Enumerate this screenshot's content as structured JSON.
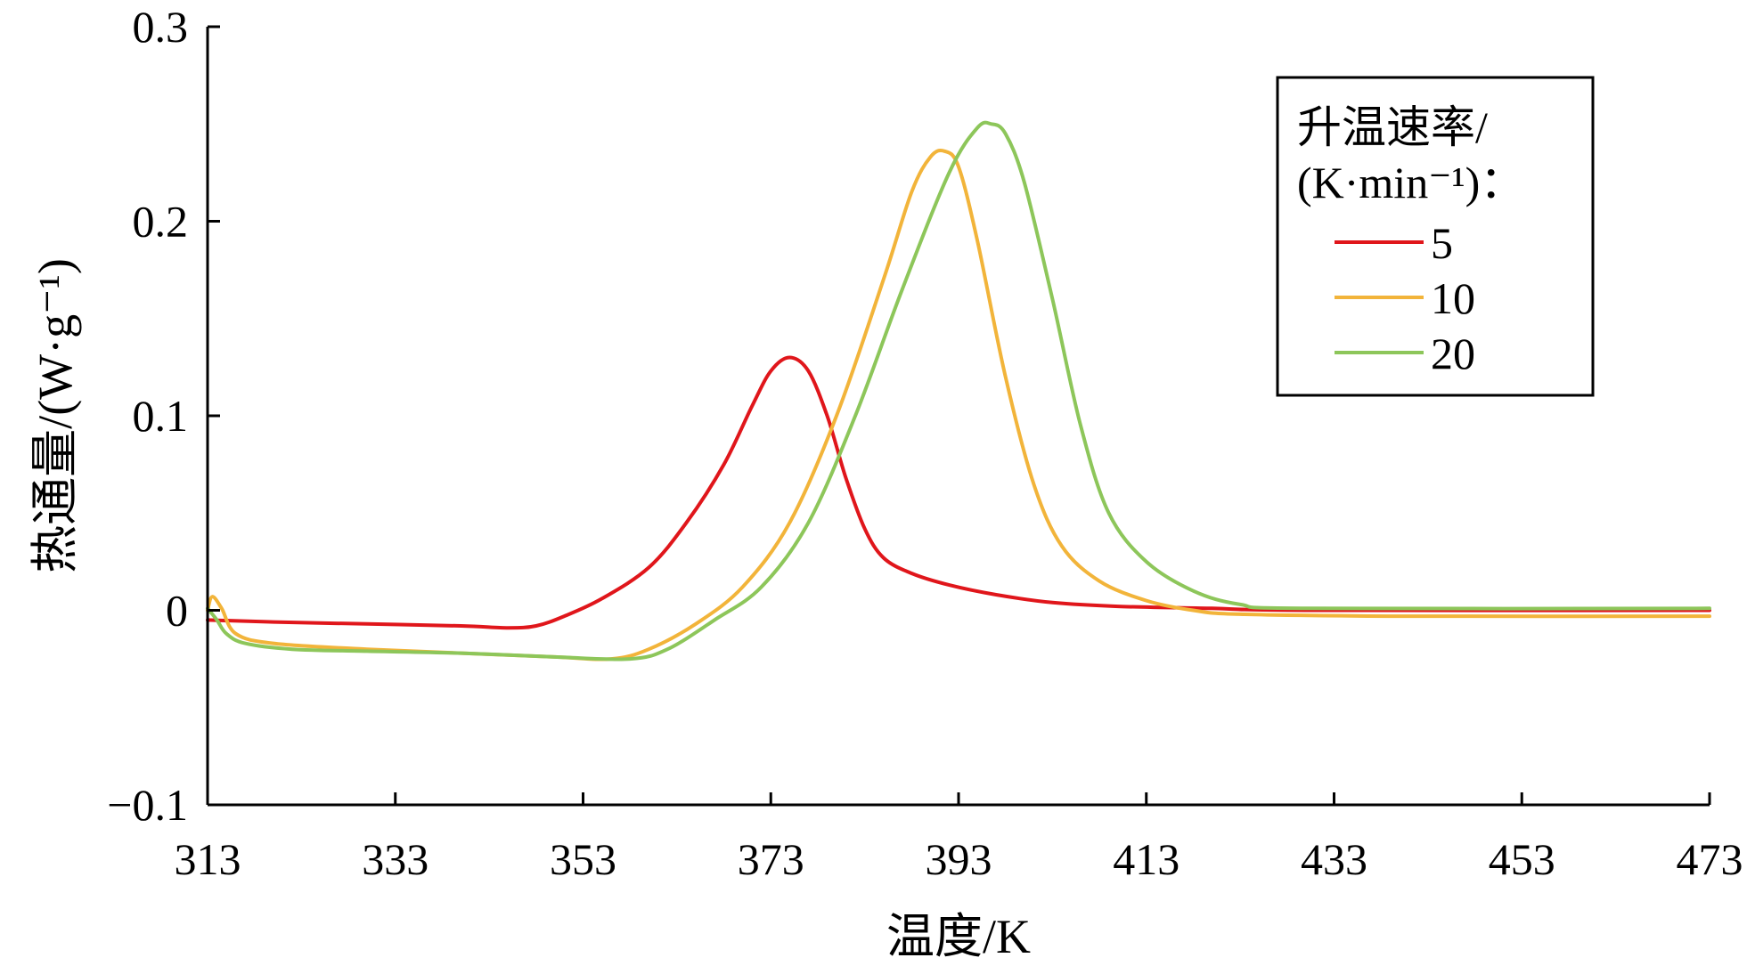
{
  "chart_data": {
    "type": "line",
    "xlabel": "温度/K",
    "ylabel": "热通量/(W·g⁻¹)",
    "xlim": [
      313,
      473
    ],
    "ylim": [
      -0.1,
      0.3
    ],
    "x_ticks": [
      "313",
      "333",
      "353",
      "373",
      "393",
      "413",
      "433",
      "453",
      "473"
    ],
    "y_ticks": [
      "−0.1",
      "0",
      "0.1",
      "0.2",
      "0.3"
    ],
    "legend": {
      "title_line1": "升温速率/",
      "title_line2": "(K·min⁻¹)：",
      "position": "top-right"
    },
    "series": [
      {
        "name": "5",
        "color": "#e0161b",
        "points": [
          [
            313,
            -0.005
          ],
          [
            320,
            -0.006
          ],
          [
            330,
            -0.007
          ],
          [
            340,
            -0.008
          ],
          [
            345,
            -0.009
          ],
          [
            348,
            -0.008
          ],
          [
            351,
            -0.003
          ],
          [
            355,
            0.006
          ],
          [
            360,
            0.022
          ],
          [
            364,
            0.045
          ],
          [
            368,
            0.075
          ],
          [
            371,
            0.105
          ],
          [
            373,
            0.123
          ],
          [
            375,
            0.13
          ],
          [
            377,
            0.123
          ],
          [
            379,
            0.1
          ],
          [
            381,
            0.068
          ],
          [
            383,
            0.042
          ],
          [
            385,
            0.027
          ],
          [
            388,
            0.019
          ],
          [
            392,
            0.013
          ],
          [
            397,
            0.008
          ],
          [
            403,
            0.004
          ],
          [
            410,
            0.002
          ],
          [
            420,
            0.001
          ],
          [
            430,
            0.0
          ],
          [
            473,
            0.0
          ]
        ]
      },
      {
        "name": "10",
        "color": "#f2b43a",
        "points": [
          [
            313,
            0.0
          ],
          [
            313.5,
            0.007
          ],
          [
            314.5,
            0.001
          ],
          [
            316,
            -0.012
          ],
          [
            320,
            -0.017
          ],
          [
            330,
            -0.02
          ],
          [
            340,
            -0.022
          ],
          [
            350,
            -0.024
          ],
          [
            356,
            -0.025
          ],
          [
            360,
            -0.02
          ],
          [
            365,
            -0.007
          ],
          [
            370,
            0.012
          ],
          [
            375,
            0.045
          ],
          [
            380,
            0.1
          ],
          [
            385,
            0.17
          ],
          [
            388,
            0.215
          ],
          [
            390,
            0.233
          ],
          [
            391.5,
            0.236
          ],
          [
            393,
            0.228
          ],
          [
            395,
            0.19
          ],
          [
            398,
            0.12
          ],
          [
            401,
            0.065
          ],
          [
            404,
            0.033
          ],
          [
            408,
            0.015
          ],
          [
            413,
            0.005
          ],
          [
            418,
            0.0
          ],
          [
            423,
            -0.002
          ],
          [
            440,
            -0.003
          ],
          [
            473,
            -0.003
          ]
        ]
      },
      {
        "name": "20",
        "color": "#8dc65a",
        "points": [
          [
            313,
            0.001
          ],
          [
            314,
            -0.005
          ],
          [
            315,
            -0.012
          ],
          [
            317,
            -0.017
          ],
          [
            322,
            -0.02
          ],
          [
            330,
            -0.021
          ],
          [
            340,
            -0.022
          ],
          [
            350,
            -0.024
          ],
          [
            358,
            -0.025
          ],
          [
            362,
            -0.02
          ],
          [
            367,
            -0.005
          ],
          [
            372,
            0.012
          ],
          [
            377,
            0.045
          ],
          [
            382,
            0.1
          ],
          [
            387,
            0.165
          ],
          [
            392,
            0.225
          ],
          [
            395,
            0.248
          ],
          [
            396.5,
            0.25
          ],
          [
            398,
            0.245
          ],
          [
            400,
            0.22
          ],
          [
            403,
            0.16
          ],
          [
            406,
            0.095
          ],
          [
            409,
            0.05
          ],
          [
            413,
            0.025
          ],
          [
            418,
            0.01
          ],
          [
            423,
            0.003
          ],
          [
            430,
            0.001
          ],
          [
            473,
            0.001
          ]
        ]
      }
    ]
  }
}
